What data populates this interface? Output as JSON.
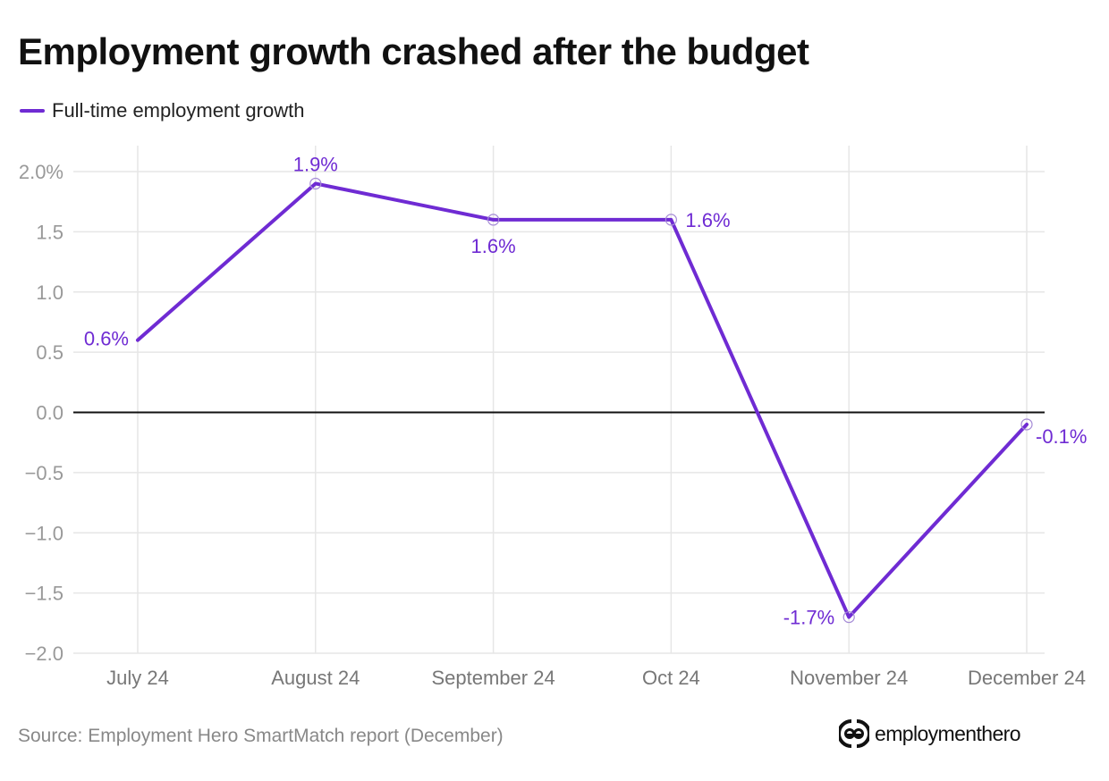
{
  "title": "Employment growth crashed after the budget",
  "source": "Source: Employment Hero SmartMatch report (December)",
  "logo": {
    "text": "employmenthero",
    "icon": "employment-hero-logo-icon"
  },
  "colors": {
    "series": "#6f2bd3",
    "grid": "#e6e6e6",
    "zero_line": "#111111",
    "tick_text": "#999999",
    "category_text": "#777777"
  },
  "chart_data": {
    "type": "line",
    "title": "Employment growth crashed after the budget",
    "xlabel": "",
    "ylabel": "",
    "categories": [
      "July 24",
      "August 24",
      "September 24",
      "Oct 24",
      "November 24",
      "December 24"
    ],
    "series": [
      {
        "name": "Full-time employment growth",
        "values": [
          0.6,
          1.9,
          1.6,
          1.6,
          -1.7,
          -0.1
        ],
        "labels": [
          "0.6%",
          "1.9%",
          "1.6%",
          "1.6%",
          "-1.7%",
          "-0.1%"
        ]
      }
    ],
    "ylim": [
      -2.0,
      2.0
    ],
    "yticks": [
      2.0,
      1.5,
      1.0,
      0.5,
      0.0,
      -0.5,
      -1.0,
      -1.5,
      -2.0
    ],
    "ytick_labels": [
      "2.0%",
      "1.5",
      "1.0",
      "0.5",
      "0.0",
      "−0.5",
      "−1.0",
      "−1.5",
      "−2.0"
    ],
    "grid": true,
    "zero_line": true,
    "legend": {
      "position": "top-left",
      "entries": [
        "Full-time employment growth"
      ]
    }
  }
}
